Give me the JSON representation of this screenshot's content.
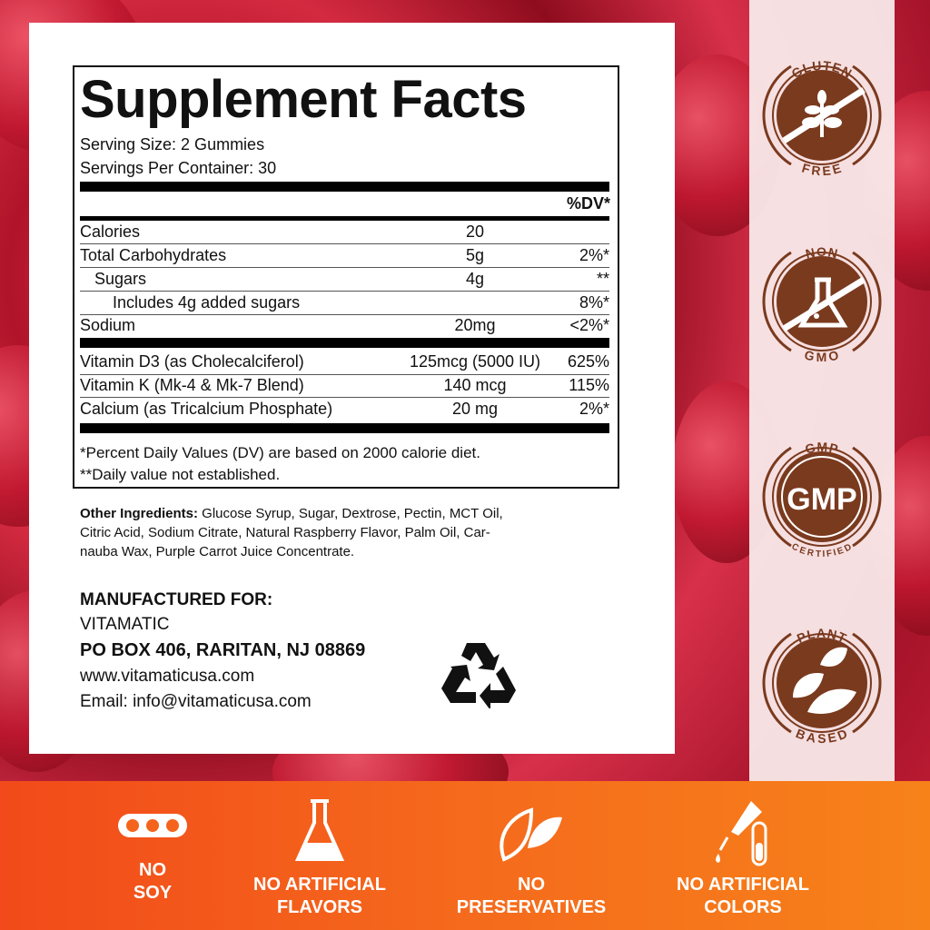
{
  "facts": {
    "title": "Supplement Facts",
    "serving_size": "Serving Size: 2 Gummies",
    "servings_per_container": "Servings Per Container: 30",
    "dv_header": "%DV*",
    "rows": [
      {
        "name": "Calories",
        "amount": "20",
        "dv": ""
      },
      {
        "name": "Total Carbohydrates",
        "amount": "5g",
        "dv": "2%*"
      },
      {
        "name": "Sugars",
        "amount": "4g",
        "dv": "**"
      },
      {
        "name": "Includes 4g added sugars",
        "amount": "",
        "dv": "8%*"
      },
      {
        "name": "Sodium",
        "amount": "20mg",
        "dv": "<2%*"
      },
      {
        "name": "Vitamin D3 (as Cholecalciferol)",
        "amount": "125mcg (5000 IU)",
        "dv": "625%"
      },
      {
        "name": "Vitamin K (Mk-4 & Mk-7 Blend)",
        "amount": "140 mcg",
        "dv": "115%"
      },
      {
        "name": "Calcium (as Tricalcium Phosphate)",
        "amount": "20 mg",
        "dv": "2%*"
      }
    ],
    "footnote1": "*Percent Daily Values (DV) are based on 2000 calorie diet.",
    "footnote2": "**Daily value not established."
  },
  "ingredients": {
    "label": "Other Ingredients:",
    "line1": " Glucose Syrup, Sugar, Dextrose, Pectin, MCT Oil,",
    "line2": "Citric Acid, Sodium Citrate, Natural Raspberry Flavor, Palm Oil, Car-",
    "line3": "nauba Wax, Purple Carrot Juice Concentrate."
  },
  "manufacturer": {
    "heading": "MANUFACTURED FOR:",
    "name": "VITAMATIC",
    "address": "PO BOX 406, RARITAN, NJ 08869",
    "website": "www.vitamaticusa.com",
    "email": "Email: info@vitamaticusa.com",
    "recycle_icon": "recycle-icon"
  },
  "badges": [
    {
      "top": "GLUTEN",
      "bottom": "FREE",
      "icon": "wheat-crossed-icon"
    },
    {
      "top": "NON",
      "bottom": "GMO",
      "icon": "flask-crossed-icon"
    },
    {
      "top": "GMP",
      "bottom": "CERTIFIED",
      "center": "GMP"
    },
    {
      "top": "PLANT",
      "bottom": "BASED",
      "icon": "leaves-icon"
    }
  ],
  "features": [
    {
      "line1": "NO",
      "line2": "SOY",
      "icon": "soybean-icon"
    },
    {
      "line1": "NO ARTIFICIAL",
      "line2": "FLAVORS",
      "icon": "flask-icon"
    },
    {
      "line1": "NO",
      "line2": "PRESERVATIVES",
      "icon": "leaf-icon"
    },
    {
      "line1": "NO ARTIFICIAL",
      "line2": "COLORS",
      "icon": "dropper-icon"
    }
  ],
  "colors": {
    "badge_brown": "#7a3a1e",
    "band_orange": "#f56a1c",
    "berry_red": "#c0172f"
  }
}
